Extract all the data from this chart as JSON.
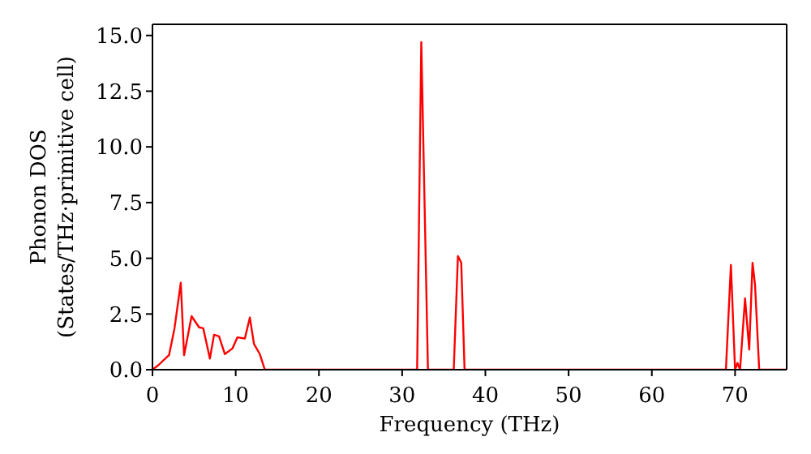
{
  "chart_data": {
    "type": "line",
    "xlabel": "Frequency (THz)",
    "ylabel": "Phonon DOS\n(States/THz·primitive cell)",
    "x": [
      0,
      0.7,
      2.0,
      2.65,
      3.4,
      3.8,
      4.7,
      5.6,
      6.1,
      6.9,
      7.4,
      8.0,
      8.7,
      9.6,
      10.2,
      11.1,
      11.7,
      12.2,
      12.9,
      13.5,
      31.8,
      32.3,
      33.1,
      36.2,
      36.7,
      37.1,
      37.5,
      68.9,
      69.5,
      70.0,
      70.3,
      70.6,
      71.2,
      71.7,
      72.1,
      72.4,
      72.9,
      76.2
    ],
    "series": [
      {
        "color": "#ff0000",
        "values": [
          0,
          0.2,
          0.66,
          1.86,
          3.9,
          0.65,
          2.4,
          1.9,
          1.86,
          0.5,
          1.57,
          1.5,
          0.7,
          0.95,
          1.45,
          1.4,
          2.34,
          1.15,
          0.7,
          0,
          0,
          14.7,
          0,
          0,
          5.1,
          4.8,
          0,
          0,
          4.7,
          0,
          0.3,
          0,
          3.2,
          0.9,
          4.8,
          3.8,
          0,
          0
        ]
      }
    ],
    "xlim": [
      0,
      76.2
    ],
    "ylim": [
      0,
      15.5
    ],
    "xticks": [
      0,
      10,
      20,
      30,
      40,
      50,
      60,
      70
    ],
    "yticks": [
      {
        "value": 0,
        "label": "0.0"
      },
      {
        "value": 2.5,
        "label": "2.5"
      },
      {
        "value": 5,
        "label": "5.0"
      },
      {
        "value": 7.5,
        "label": "7.5"
      },
      {
        "value": 10,
        "label": "10.0"
      },
      {
        "value": 12.5,
        "label": "12.5"
      },
      {
        "value": 15,
        "label": "15.0"
      }
    ],
    "grid": false,
    "legend": false,
    "marker": "none",
    "line_style": "solid"
  }
}
